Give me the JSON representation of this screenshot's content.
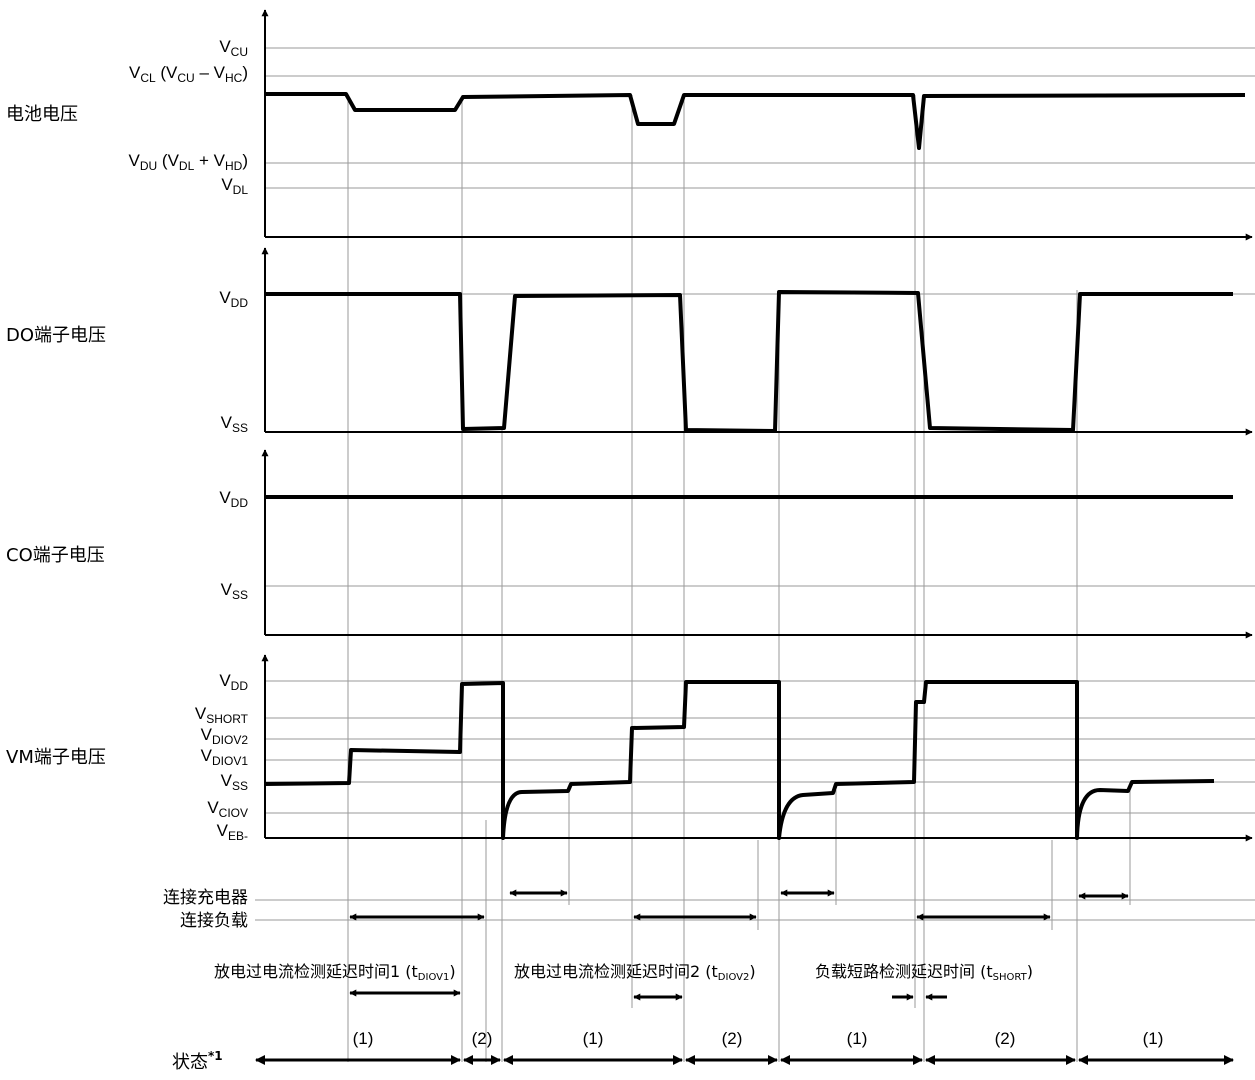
{
  "battery": {
    "title": "电池电压",
    "levels": {
      "vcu": {
        "main": "V",
        "sub": "CU"
      },
      "vcl": {
        "p1": "V",
        "s1": "CL",
        "p2": " (V",
        "s2": "CU",
        "p3": " – V",
        "s3": "HC",
        "p4": ")"
      },
      "vdu": {
        "p1": "V",
        "s1": "DU",
        "p2": " (V",
        "s2": "DL",
        "p3": " + V",
        "s3": "HD",
        "p4": ")"
      },
      "vdl": {
        "main": "V",
        "sub": "DL"
      }
    }
  },
  "do_pin": {
    "title": "DO端子电压",
    "vdd": {
      "main": "V",
      "sub": "DD"
    },
    "vss": {
      "main": "V",
      "sub": "SS"
    }
  },
  "co_pin": {
    "title": "CO端子电压",
    "vdd": {
      "main": "V",
      "sub": "DD"
    },
    "vss": {
      "main": "V",
      "sub": "SS"
    }
  },
  "vm_pin": {
    "title": "VM端子电压",
    "vdd": {
      "main": "V",
      "sub": "DD"
    },
    "vshort": {
      "main": "V",
      "sub": "SHORT"
    },
    "vdiov2": {
      "main": "V",
      "sub": "DIOV2"
    },
    "vdiov1": {
      "main": "V",
      "sub": "DIOV1"
    },
    "vss": {
      "main": "V",
      "sub": "SS"
    },
    "vciov": {
      "main": "V",
      "sub": "CIOV"
    },
    "veb": {
      "main": "V",
      "sub": "EB-"
    }
  },
  "events": {
    "charger": "连接充电器",
    "load": "连接负载"
  },
  "delays": {
    "d1": {
      "prefix": "放电过电流检测延迟时间1 (t",
      "sub": "DIOV1",
      "suffix": ")"
    },
    "d2": {
      "prefix": "放电过电流检测延迟时间2 (t",
      "sub": "DIOV2",
      "suffix": ")"
    },
    "d3": {
      "prefix": "负载短路检测延迟时间 (t",
      "sub": "SHORT",
      "suffix": ")"
    }
  },
  "state": {
    "label": "状态",
    "note": "*1",
    "segments": [
      "(1)",
      "(2)",
      "(1)",
      "(2)",
      "(1)",
      "(2)",
      "(1)"
    ]
  },
  "colors": {
    "line": "#000000",
    "grid": "#9a9a9a"
  }
}
